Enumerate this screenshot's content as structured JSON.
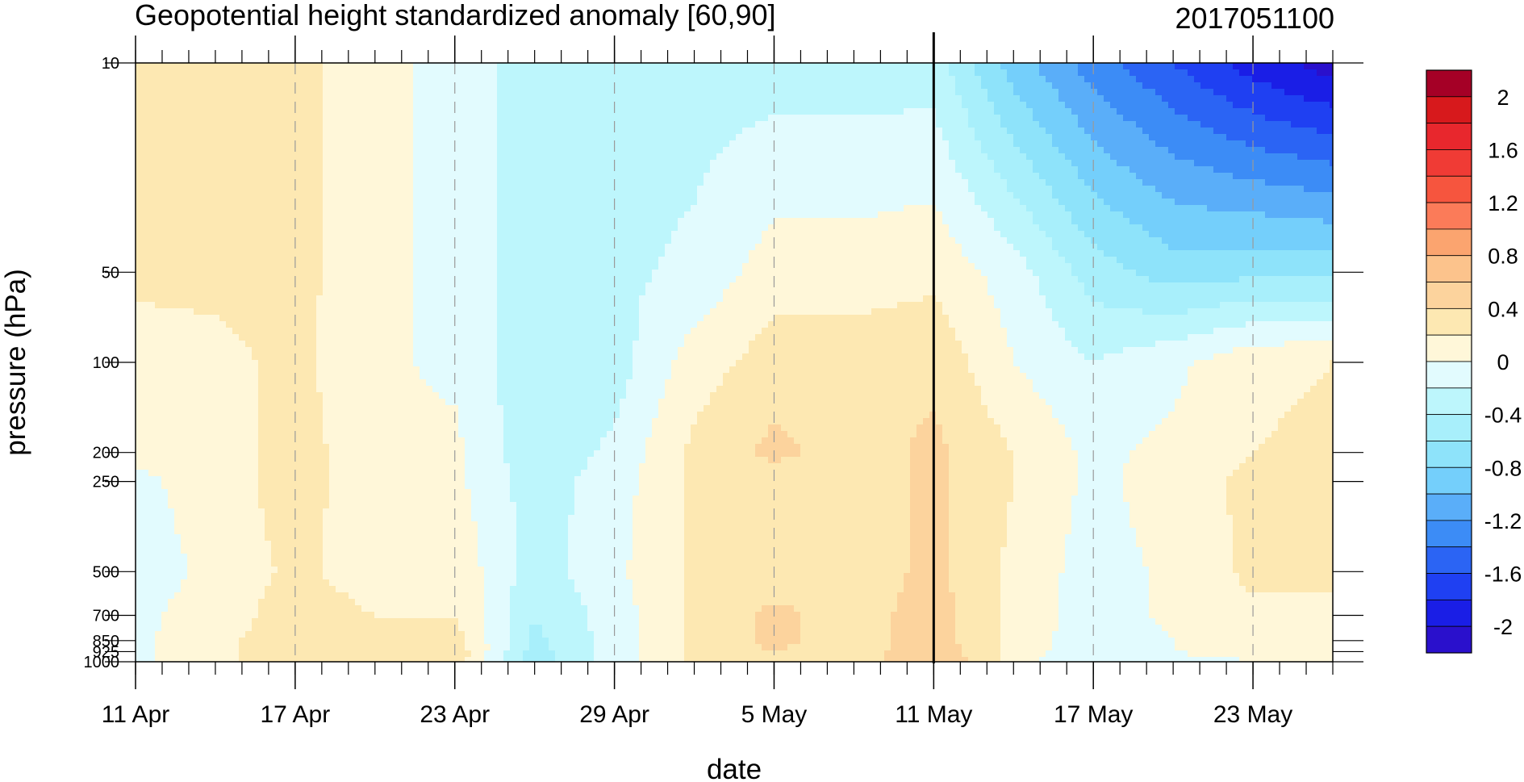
{
  "chart_data": {
    "type": "heatmap",
    "title": "Geopotential height standardized anomaly [60,90]",
    "date_stamp": "2017051100",
    "xlabel": "date",
    "ylabel": "pressure (hPa)",
    "y_log_scale": true,
    "y_inverted": true,
    "ylim": [
      1000,
      10
    ],
    "x_tick_labels": [
      "11 Apr",
      "17 Apr",
      "23 Apr",
      "29 Apr",
      "5 May",
      "11 May",
      "17 May",
      "23 May"
    ],
    "x_tick_dates": [
      "2017-04-11",
      "2017-04-17",
      "2017-04-23",
      "2017-04-29",
      "2017-05-05",
      "2017-05-11",
      "2017-05-17",
      "2017-05-23"
    ],
    "xlim": [
      "2017-04-11",
      "2017-05-26"
    ],
    "pressure_levels": [
      10,
      50,
      100,
      200,
      250,
      500,
      700,
      850,
      925,
      1000
    ],
    "y_tick_labels": [
      "10",
      "50",
      "100",
      "200",
      "250",
      "500",
      "700",
      "850",
      "925",
      "1000"
    ],
    "forecast_start_date": "2017-05-11",
    "grid": "dashed vertical lines at labeled dates",
    "colorbar": {
      "placement": "right",
      "labels": [
        "2",
        "1.6",
        "1.2",
        "0.8",
        "0.4",
        "0",
        "-0.4",
        "-0.8",
        "-1.2",
        "-1.6",
        "-2"
      ],
      "levels": [
        2.2,
        2.0,
        1.8,
        1.6,
        1.4,
        1.2,
        1.0,
        0.8,
        0.6,
        0.4,
        0.2,
        0.0,
        -0.2,
        -0.4,
        -0.6,
        -0.8,
        -1.0,
        -1.2,
        -1.4,
        -1.6,
        -1.8,
        -2.0,
        -2.2
      ],
      "colors": [
        "#a50026",
        "#d7191c",
        "#e8272d",
        "#f03b35",
        "#f6553e",
        "#fb7b59",
        "#fba46f",
        "#fcc38c",
        "#fcd39d",
        "#fde8b2",
        "#fff7d9",
        "#e2fbfe",
        "#bdf6fc",
        "#a8effb",
        "#8ee3fa",
        "#74cffb",
        "#5aaef9",
        "#3c8cf6",
        "#2b64f4",
        "#1f40f2",
        "#1a1ee6",
        "#2a10cc"
      ]
    },
    "anomaly_grid": {
      "dates": [
        "2017-04-11",
        "2017-04-14",
        "2017-04-17",
        "2017-04-20",
        "2017-04-23",
        "2017-04-26",
        "2017-04-29",
        "2017-05-02",
        "2017-05-05",
        "2017-05-08",
        "2017-05-11",
        "2017-05-14",
        "2017-05-17",
        "2017-05-20",
        "2017-05-23",
        "2017-05-26"
      ],
      "levels_hPa": [
        10,
        50,
        100,
        200,
        250,
        500,
        700,
        850,
        925,
        1000
      ],
      "values": [
        [
          0.25,
          0.25,
          0.25,
          0.1,
          -0.1,
          -0.3,
          -0.3,
          -0.3,
          -0.3,
          -0.3,
          -0.3,
          -0.9,
          -1.3,
          -1.6,
          -1.9,
          -2.1
        ],
        [
          0.25,
          0.25,
          0.25,
          0.1,
          -0.1,
          -0.3,
          -0.25,
          -0.15,
          0.1,
          0.1,
          0.15,
          -0.1,
          -0.5,
          -0.7,
          -0.65,
          -0.65
        ],
        [
          0.1,
          0.15,
          0.25,
          0.05,
          -0.05,
          -0.35,
          -0.3,
          0.1,
          0.3,
          0.3,
          0.35,
          0.0,
          -0.2,
          -0.05,
          0.15,
          0.2
        ],
        [
          0.05,
          0.1,
          0.3,
          0.05,
          0.05,
          -0.35,
          -0.15,
          0.25,
          0.45,
          0.3,
          0.45,
          0.2,
          -0.05,
          0.05,
          0.2,
          0.25
        ],
        [
          -0.05,
          0.1,
          0.3,
          0.05,
          0.05,
          -0.3,
          -0.1,
          0.25,
          0.3,
          0.3,
          0.45,
          0.2,
          -0.05,
          0.1,
          0.25,
          0.25
        ],
        [
          -0.1,
          0.05,
          0.25,
          0.1,
          0.15,
          -0.3,
          -0.05,
          0.25,
          0.3,
          0.3,
          0.45,
          0.15,
          -0.1,
          0.05,
          0.25,
          0.25
        ],
        [
          -0.05,
          0.1,
          0.3,
          0.2,
          0.2,
          -0.4,
          -0.1,
          0.25,
          0.45,
          0.3,
          0.5,
          0.15,
          -0.1,
          0.05,
          0.15,
          0.15
        ],
        [
          -0.05,
          0.15,
          0.3,
          0.25,
          0.3,
          -0.45,
          -0.1,
          0.25,
          0.45,
          0.3,
          0.5,
          0.15,
          -0.15,
          0.0,
          0.1,
          0.05
        ],
        [
          -0.05,
          0.15,
          0.3,
          0.25,
          0.35,
          -0.5,
          -0.1,
          0.25,
          0.4,
          0.3,
          0.55,
          0.15,
          -0.2,
          0.0,
          0.05,
          0.05
        ],
        [
          -0.05,
          0.15,
          0.3,
          0.25,
          0.3,
          -0.5,
          -0.1,
          0.25,
          0.4,
          0.3,
          0.6,
          0.1,
          -0.2,
          -0.05,
          0.0,
          0.0
        ]
      ]
    }
  }
}
